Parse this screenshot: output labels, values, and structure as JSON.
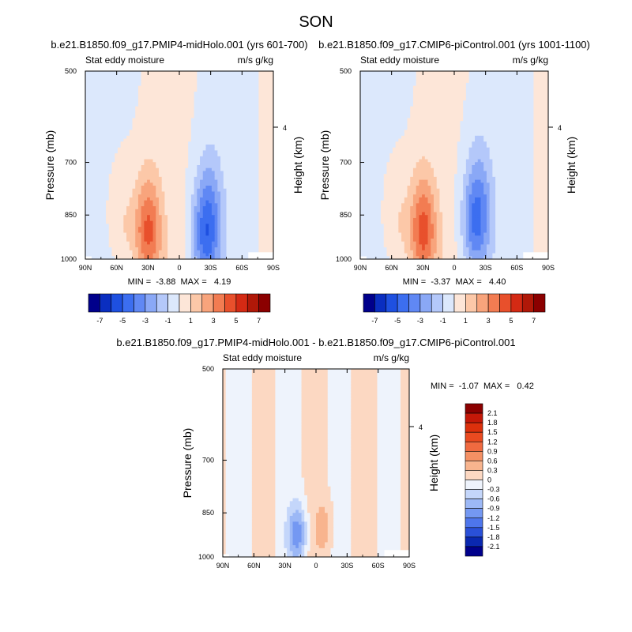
{
  "figure": {
    "title": "SON"
  },
  "chart_data": [
    {
      "type": "heatmap",
      "title": "b.e21.B1850.f09_g17.PMIP4-midHolo.001 (yrs 601-700)",
      "left_label": "Stat eddy moisture",
      "right_label": "m/s g/kg",
      "ylabel": "Pressure (mb)",
      "ylabel_right": "Height (km)",
      "x_ticks": [
        "90N",
        "60N",
        "30N",
        "0",
        "30S",
        "60S",
        "90S"
      ],
      "x_range": [
        "90N",
        "90S"
      ],
      "y_ticks": [
        "500",
        "700",
        "850",
        "1000"
      ],
      "y_range": [
        1000,
        500
      ],
      "y_scale": "log",
      "height_ticks": [
        "4"
      ],
      "min_max_text": "MIN =  -3.88  MAX =   4.19",
      "min": -3.88,
      "max": 4.19,
      "features": [
        {
          "lat": 30,
          "p": 900,
          "value": 4.19
        },
        {
          "lat": -25,
          "p": 920,
          "value": -3.88
        },
        {
          "lat": -30,
          "p": 820,
          "value": -1.5
        },
        {
          "lat": 55,
          "p": 880,
          "value": 1.2
        }
      ]
    },
    {
      "type": "heatmap",
      "title": "b.e21.B1850.f09_g17.CMIP6-piControl.001 (yrs 1001-1100)",
      "left_label": "Stat eddy moisture",
      "right_label": "m/s g/kg",
      "ylabel": "Pressure (mb)",
      "ylabel_right": "Height (km)",
      "x_ticks": [
        "90N",
        "60N",
        "30N",
        "0",
        "30S",
        "60S",
        "90S"
      ],
      "x_range": [
        "90N",
        "90S"
      ],
      "y_ticks": [
        "500",
        "700",
        "850",
        "1000"
      ],
      "y_range": [
        1000,
        500
      ],
      "y_scale": "log",
      "height_ticks": [
        "4"
      ],
      "min_max_text": "MIN =  -3.37  MAX =   4.40",
      "min": -3.37,
      "max": 4.4,
      "features": [
        {
          "lat": 30,
          "p": 900,
          "value": 4.4
        },
        {
          "lat": -20,
          "p": 880,
          "value": -3.37
        },
        {
          "lat": -25,
          "p": 800,
          "value": -1.5
        },
        {
          "lat": 55,
          "p": 880,
          "value": 1.2
        }
      ]
    },
    {
      "type": "heatmap",
      "title": "b.e21.B1850.f09_g17.PMIP4-midHolo.001 - b.e21.B1850.f09_g17.CMIP6-piControl.001",
      "left_label": "Stat eddy moisture",
      "right_label": "m/s g/kg",
      "ylabel": "Pressure (mb)",
      "ylabel_right": "Height (km)",
      "x_ticks": [
        "90N",
        "60N",
        "30N",
        "0",
        "30S",
        "60S",
        "90S"
      ],
      "x_range": [
        "90N",
        "90S"
      ],
      "y_ticks": [
        "500",
        "700",
        "850",
        "1000"
      ],
      "y_range": [
        1000,
        500
      ],
      "y_scale": "log",
      "height_ticks": [
        "4"
      ],
      "min_max_text": "MIN =  -1.07  MAX =   0.42",
      "min": -1.07,
      "max": 0.42,
      "features": [
        {
          "lat": 18,
          "p": 920,
          "value": -1.07
        },
        {
          "lat": -8,
          "p": 900,
          "value": 0.42
        }
      ]
    }
  ],
  "colorbars": {
    "absolute": {
      "labels": [
        "-7",
        "-5",
        "-3",
        "-1",
        "1",
        "3",
        "5",
        "7"
      ],
      "colors": [
        "#00008b",
        "#0a2ec0",
        "#1e50e0",
        "#3c6ef0",
        "#6088f4",
        "#8aa8f6",
        "#b4c8fa",
        "#dce8fc",
        "#fde6d8",
        "#fcc8a8",
        "#f8a47c",
        "#f27c52",
        "#e8502c",
        "#d42a14",
        "#b01808",
        "#8b0000"
      ]
    },
    "difference": {
      "labels": [
        "2.1",
        "1.8",
        "1.5",
        "1.2",
        "0.9",
        "0.6",
        "0.3",
        "0",
        "-0.3",
        "-0.6",
        "-0.9",
        "-1.2",
        "-1.5",
        "-1.8",
        "-2.1"
      ],
      "colors": [
        "#8b0000",
        "#c41808",
        "#dc300c",
        "#ea4a20",
        "#f06a40",
        "#f49064",
        "#f8b48e",
        "#fcd8c2",
        "#eef3fc",
        "#c4d6fa",
        "#9cb8f6",
        "#7498f2",
        "#4e76ec",
        "#2a50d8",
        "#0a28b0",
        "#00008b"
      ]
    }
  }
}
